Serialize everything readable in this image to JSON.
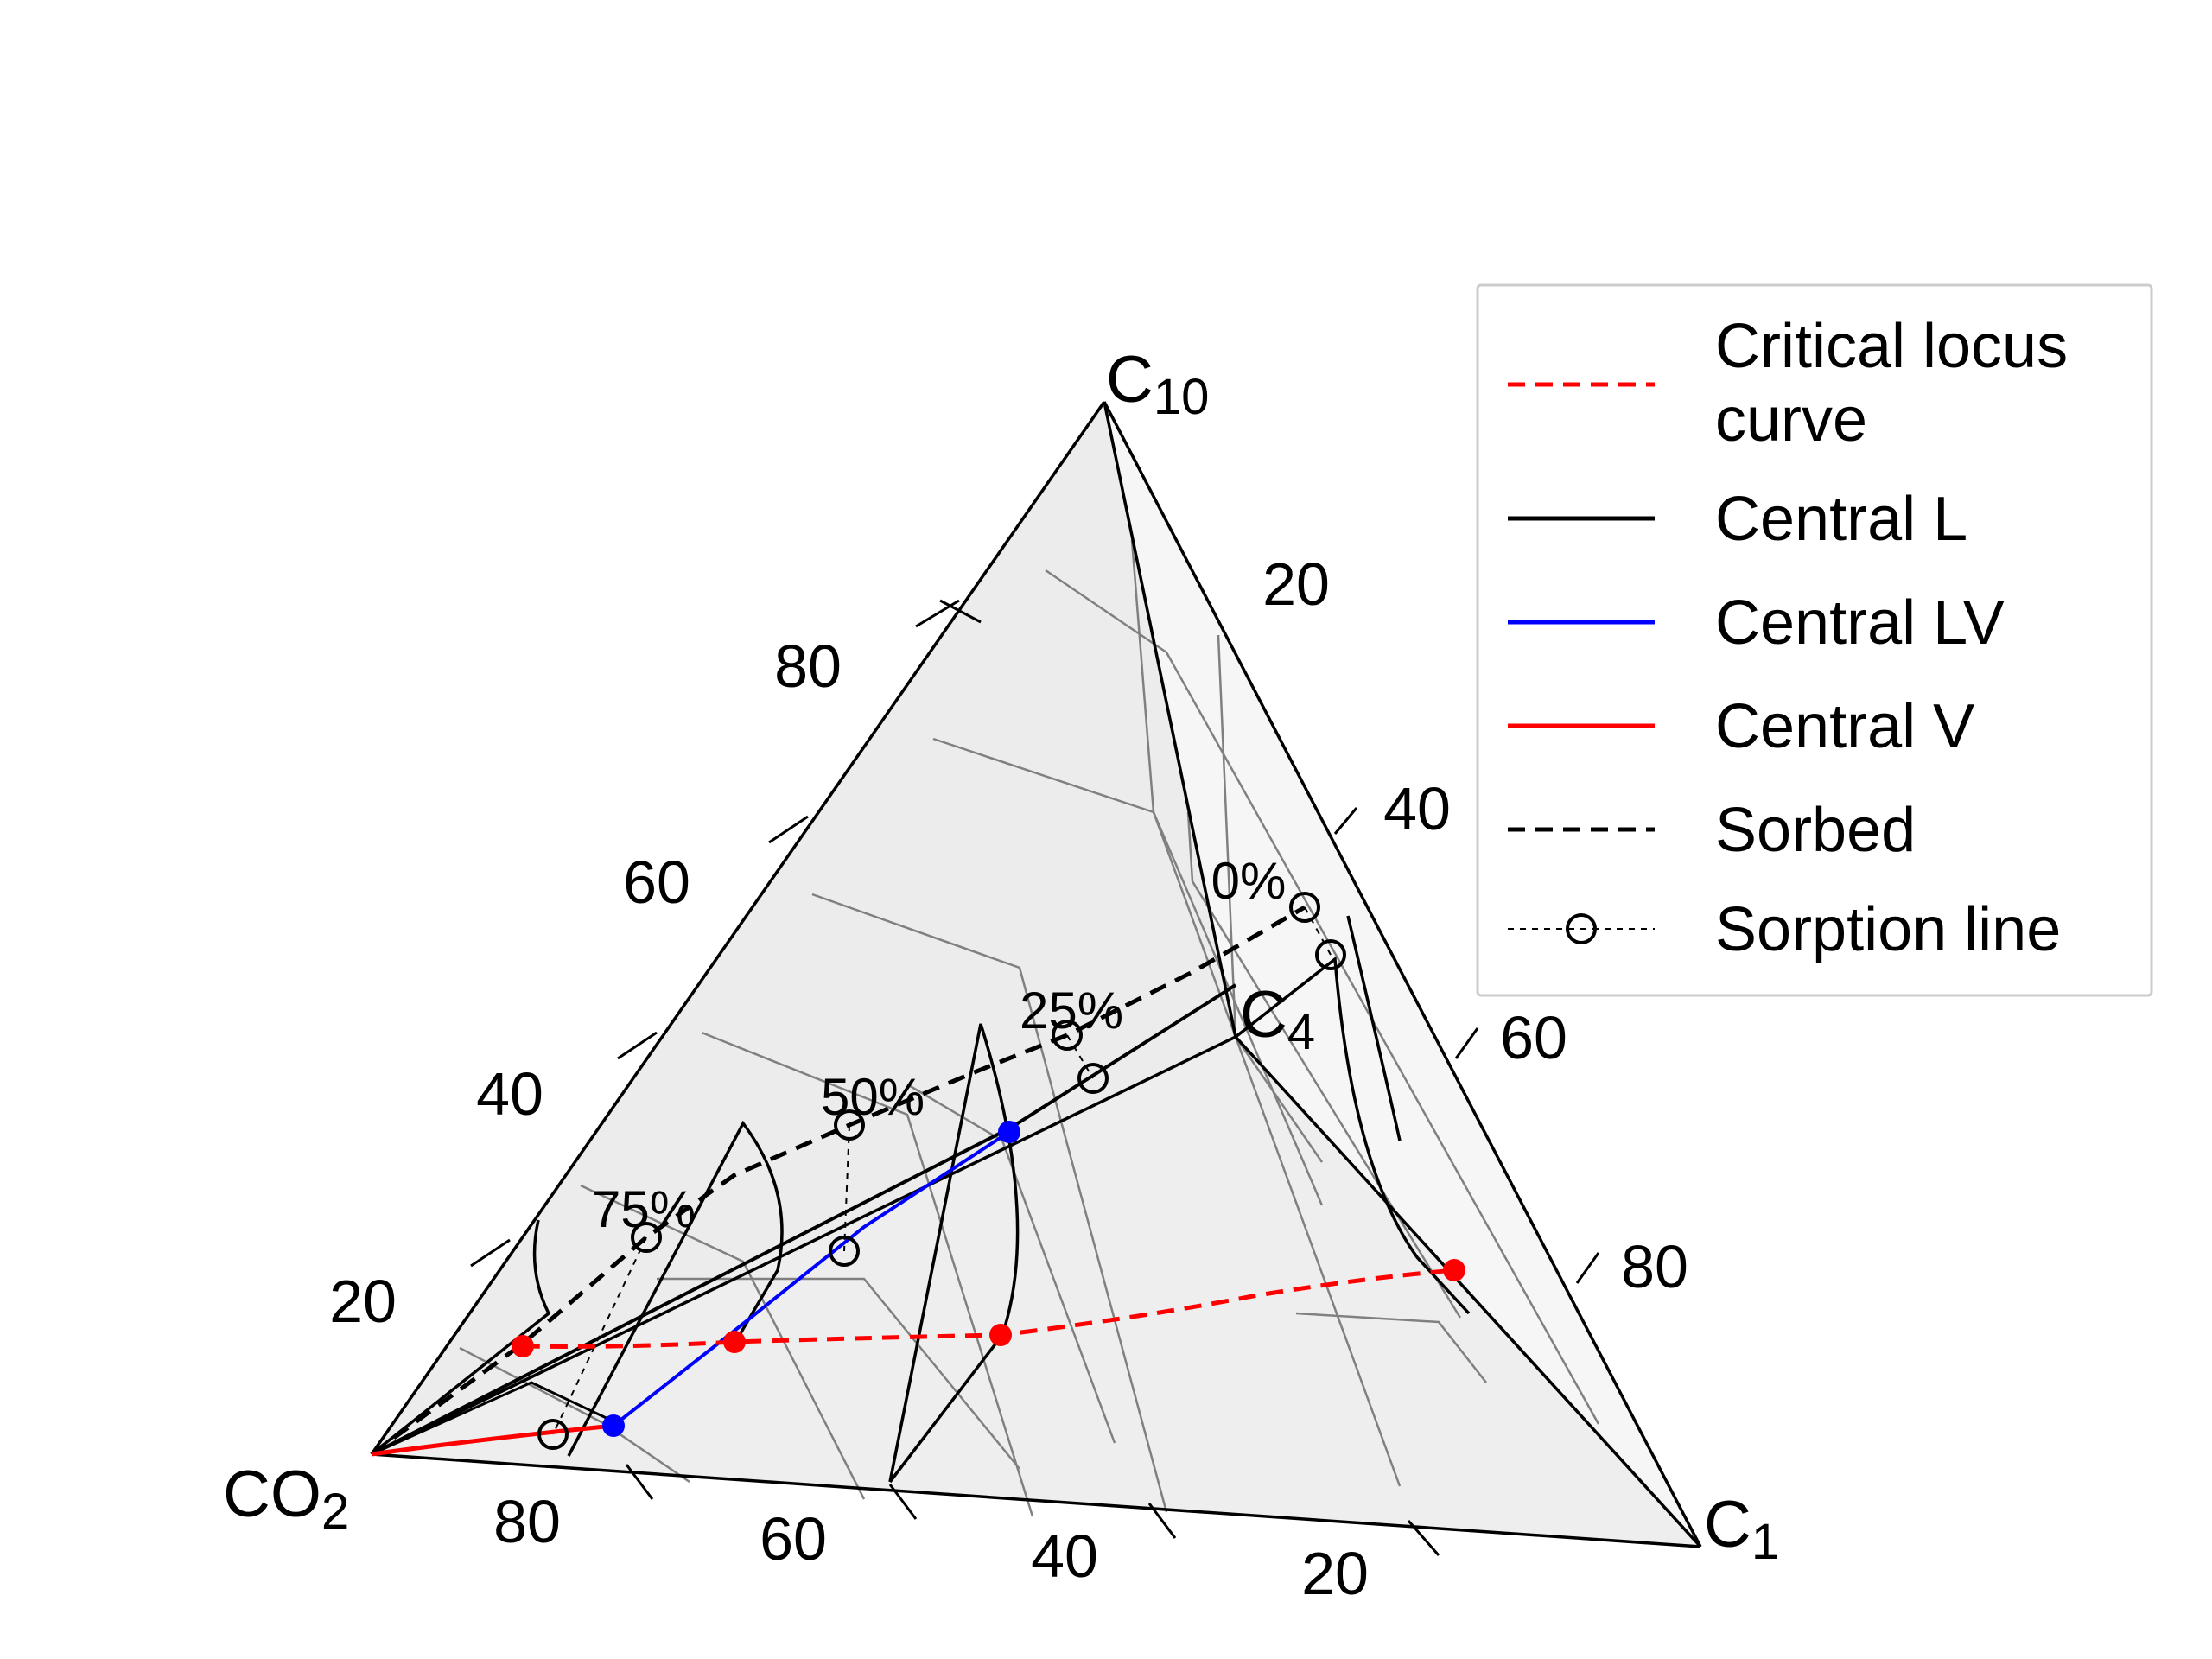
{
  "chart_data": {
    "type": "ternary-prism",
    "vertices": {
      "co2": {
        "main": "CO",
        "sub": "2"
      },
      "c1": {
        "main": "C",
        "sub": "1"
      },
      "c10": {
        "main": "C",
        "sub": "10"
      },
      "c4": {
        "main": "C",
        "sub": "4"
      }
    },
    "tick_labels": {
      "left_edge": [
        "20",
        "40",
        "60",
        "80"
      ],
      "right_edge": [
        "20",
        "40",
        "60",
        "80"
      ],
      "bottom_edge": [
        "80",
        "60",
        "40",
        "20"
      ]
    },
    "slice_labels": [
      "0%",
      "25%",
      "50%",
      "75%"
    ],
    "grid": true,
    "legend_position": "right",
    "legend": [
      {
        "label": "Critical locus curve",
        "lines": [
          "Critical locus",
          "curve"
        ],
        "color": "#ff0000",
        "style": "dashed"
      },
      {
        "label": "Central L",
        "lines": [
          "Central L"
        ],
        "color": "#000000",
        "style": "solid"
      },
      {
        "label": "Central LV",
        "lines": [
          "Central LV"
        ],
        "color": "#0000ff",
        "style": "solid"
      },
      {
        "label": "Central V",
        "lines": [
          "Central V"
        ],
        "color": "#ff0000",
        "style": "solid"
      },
      {
        "label": "Sorbed",
        "lines": [
          "Sorbed"
        ],
        "color": "#000000",
        "style": "dashed"
      },
      {
        "label": "Sorption line",
        "lines": [
          "Sorption line"
        ],
        "color": "#000000",
        "style": "dashed-marker"
      }
    ]
  }
}
